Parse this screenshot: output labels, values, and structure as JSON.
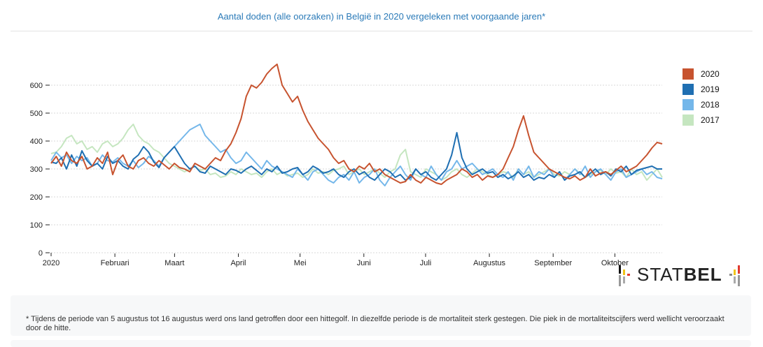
{
  "header": {
    "title": "Aantal doden (alle oorzaken) in België in 2020 vergeleken met voorgaande jaren*"
  },
  "logo": {
    "text_light": "STAT",
    "text_bold": "BEL"
  },
  "footnote": {
    "text": "* Tijdens de periode van 5 augustus tot 16 augustus werd ons land getroffen door een hittegolf. In diezelfde periode is de mortaliteit sterk gestegen. Die piek in de mortaliteitscijfers werd wellicht veroorzaakt door de hitte."
  },
  "chart_data": {
    "type": "line",
    "title": "Aantal doden (alle oorzaken) in België in 2020 vergeleken met voorgaande jaren*",
    "xlabel": "",
    "ylabel": "",
    "x_unit": "day of year (sampled every 3 days, 0 = 1 januari)",
    "xlim": [
      0,
      297
    ],
    "ylim": [
      0,
      680
    ],
    "yticks": [
      0,
      100,
      200,
      300,
      400,
      500,
      600
    ],
    "grid": true,
    "legend_position": "right",
    "xticks": [
      {
        "day": 0,
        "label": "2020"
      },
      {
        "day": 31,
        "label": "Februari"
      },
      {
        "day": 60,
        "label": "Maart"
      },
      {
        "day": 91,
        "label": "April"
      },
      {
        "day": 121,
        "label": "Mei"
      },
      {
        "day": 152,
        "label": "Juni"
      },
      {
        "day": 182,
        "label": "Juli"
      },
      {
        "day": 213,
        "label": "Augustus"
      },
      {
        "day": 244,
        "label": "September"
      },
      {
        "day": 274,
        "label": "Oktober"
      }
    ],
    "series": [
      {
        "name": "2020",
        "color": "#c7532f",
        "values": [
          320,
          345,
          310,
          360,
          330,
          320,
          345,
          300,
          310,
          340,
          320,
          360,
          280,
          330,
          350,
          310,
          300,
          330,
          340,
          320,
          310,
          330,
          315,
          300,
          320,
          305,
          300,
          290,
          320,
          310,
          300,
          320,
          340,
          330,
          365,
          390,
          430,
          480,
          560,
          600,
          590,
          610,
          640,
          660,
          675,
          600,
          570,
          540,
          560,
          510,
          470,
          440,
          410,
          390,
          370,
          340,
          320,
          330,
          300,
          290,
          310,
          300,
          320,
          290,
          300,
          280,
          270,
          260,
          250,
          255,
          280,
          260,
          250,
          270,
          260,
          250,
          245,
          260,
          270,
          280,
          300,
          290,
          270,
          280,
          260,
          275,
          270,
          280,
          300,
          340,
          380,
          440,
          490,
          420,
          360,
          340,
          320,
          300,
          290,
          280,
          270,
          265,
          275,
          260,
          270,
          300,
          275,
          285,
          290,
          280,
          295,
          310,
          290,
          300,
          310,
          330,
          350,
          375,
          395,
          390
        ]
      },
      {
        "name": "2019",
        "color": "#1f6fb2",
        "values": [
          325,
          320,
          340,
          300,
          350,
          310,
          365,
          330,
          310,
          320,
          300,
          345,
          320,
          330,
          310,
          300,
          335,
          350,
          380,
          360,
          325,
          305,
          340,
          360,
          380,
          350,
          320,
          300,
          310,
          290,
          285,
          310,
          300,
          290,
          280,
          300,
          295,
          285,
          300,
          310,
          295,
          280,
          300,
          290,
          310,
          285,
          290,
          300,
          305,
          280,
          290,
          310,
          300,
          285,
          290,
          300,
          280,
          270,
          290,
          300,
          280,
          290,
          270,
          260,
          280,
          300,
          290,
          270,
          280,
          260,
          270,
          300,
          280,
          290,
          270,
          260,
          280,
          300,
          350,
          430,
          340,
          300,
          280,
          290,
          300,
          285,
          290,
          270,
          280,
          265,
          275,
          290,
          270,
          280,
          260,
          270,
          265,
          280,
          270,
          290,
          260,
          275,
          280,
          290,
          270,
          285,
          300,
          280,
          290,
          275,
          300,
          290,
          310,
          280,
          295,
          300,
          305,
          310,
          300,
          300
        ]
      },
      {
        "name": "2018",
        "color": "#74b7ea",
        "values": [
          330,
          360,
          340,
          350,
          320,
          345,
          330,
          340,
          310,
          320,
          350,
          330,
          325,
          340,
          320,
          310,
          330,
          305,
          320,
          345,
          330,
          310,
          340,
          360,
          380,
          400,
          420,
          440,
          450,
          460,
          420,
          400,
          380,
          360,
          370,
          340,
          320,
          330,
          360,
          340,
          320,
          300,
          330,
          310,
          300,
          290,
          280,
          270,
          300,
          280,
          260,
          290,
          300,
          280,
          260,
          250,
          270,
          280,
          260,
          290,
          250,
          270,
          280,
          300,
          260,
          240,
          270,
          290,
          310,
          280,
          260,
          300,
          280,
          270,
          310,
          280,
          260,
          290,
          300,
          330,
          300,
          310,
          320,
          300,
          280,
          290,
          300,
          280,
          270,
          290,
          260,
          300,
          280,
          310,
          270,
          290,
          280,
          300,
          270,
          290,
          260,
          280,
          300,
          280,
          310,
          270,
          290,
          300,
          280,
          260,
          290,
          300,
          270,
          280,
          290,
          300,
          280,
          290,
          270,
          265
        ]
      },
      {
        "name": "2017",
        "color": "#c5e6c0",
        "values": [
          355,
          360,
          380,
          410,
          420,
          390,
          400,
          370,
          380,
          360,
          390,
          400,
          380,
          390,
          410,
          440,
          460,
          420,
          400,
          390,
          370,
          360,
          340,
          320,
          310,
          300,
          290,
          300,
          310,
          295,
          300,
          280,
          285,
          270,
          275,
          290,
          280,
          300,
          290,
          280,
          285,
          270,
          290,
          300,
          280,
          290,
          275,
          280,
          285,
          270,
          280,
          300,
          285,
          290,
          280,
          295,
          300,
          310,
          280,
          290,
          300,
          280,
          290,
          300,
          285,
          270,
          290,
          300,
          350,
          370,
          290,
          280,
          270,
          300,
          290,
          280,
          260,
          270,
          290,
          300,
          280,
          270,
          285,
          300,
          290,
          280,
          270,
          280,
          290,
          285,
          270,
          300,
          280,
          290,
          270,
          280,
          290,
          300,
          280,
          275,
          290,
          280,
          300,
          285,
          270,
          280,
          290,
          295,
          280,
          300,
          285,
          290,
          270,
          300,
          280,
          290,
          260,
          280,
          300,
          270
        ]
      }
    ]
  }
}
